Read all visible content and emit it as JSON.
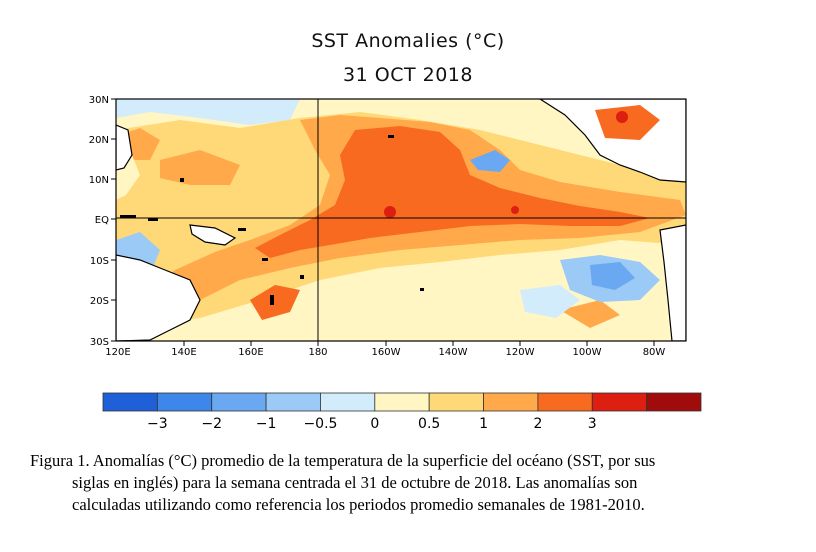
{
  "title": "SST Anomalies (°C)",
  "date": "31 OCT 2018",
  "lat_labels": [
    "30N",
    "20N",
    "10N",
    "EQ",
    "10S",
    "20S",
    "30S"
  ],
  "lon_labels": [
    "120E",
    "140E",
    "160E",
    "180",
    "160W",
    "140W",
    "120W",
    "100W",
    "80W"
  ],
  "colorbar": {
    "colors": [
      "#1f5fd8",
      "#3d86ea",
      "#6aa8f2",
      "#9ccaf6",
      "#d2ecfc",
      "#fff6c4",
      "#ffd877",
      "#ffa94a",
      "#f76a20",
      "#dc1f10",
      "#a00c0c"
    ],
    "tick_labels": [
      "−3",
      "−2",
      "−1",
      "−0.5",
      "0",
      "0.5",
      "1",
      "2",
      "3"
    ]
  },
  "caption": {
    "line1": "Figura 1. Anomalías (°C) promedio de la temperatura de la superficie del océano (SST, por sus",
    "line2": "siglas en inglés) para la semana centrada el 31 de octubre de 2018. Las anomalías son",
    "line3": "calculadas utilizando como referencia los periodos promedio semanales de 1981-2010."
  }
}
